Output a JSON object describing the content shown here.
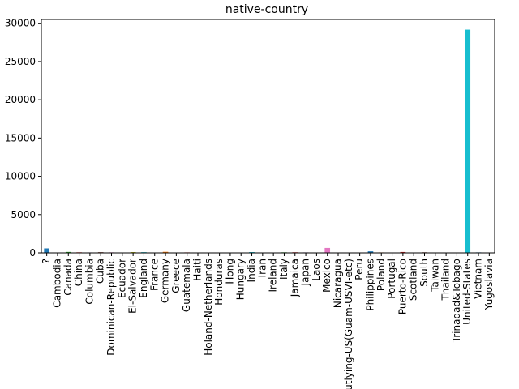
{
  "chart_data": {
    "type": "bar",
    "title": "native-country",
    "xlabel": "",
    "ylabel": "",
    "ylim": [
      0,
      30500
    ],
    "yticks": [
      0,
      5000,
      10000,
      15000,
      20000,
      25000,
      30000
    ],
    "grid": false,
    "legend": "none",
    "categories": [
      "?",
      "Cambodia",
      "Canada",
      "China",
      "Columbia",
      "Cuba",
      "Dominican-Republic",
      "Ecuador",
      "El-Salvador",
      "England",
      "France",
      "Germany",
      "Greece",
      "Guatemala",
      "Haiti",
      "Holand-Netherlands",
      "Honduras",
      "Hong",
      "Hungary",
      "India",
      "Iran",
      "Ireland",
      "Italy",
      "Jamaica",
      "Japan",
      "Laos",
      "Mexico",
      "Nicaragua",
      "Outlying-US(Guam-USVI-etc)",
      "Peru",
      "Philippines",
      "Poland",
      "Portugal",
      "Puerto-Rico",
      "Scotland",
      "South",
      "Taiwan",
      "Thailand",
      "Trinadad&Tobago",
      "United-States",
      "Vietnam",
      "Yugoslavia"
    ],
    "values": [
      583,
      19,
      121,
      75,
      59,
      95,
      70,
      28,
      106,
      90,
      29,
      137,
      29,
      64,
      44,
      1,
      13,
      20,
      13,
      100,
      43,
      24,
      73,
      81,
      62,
      18,
      643,
      34,
      14,
      31,
      198,
      60,
      37,
      114,
      12,
      80,
      51,
      18,
      19,
      29170,
      67,
      16
    ],
    "colors": [
      "#1f77b4",
      "#ff7f0e",
      "#2ca02c",
      "#d62728",
      "#9467bd",
      "#8c564b",
      "#e377c2",
      "#7f7f7f",
      "#bcbd22",
      "#17becf"
    ]
  }
}
